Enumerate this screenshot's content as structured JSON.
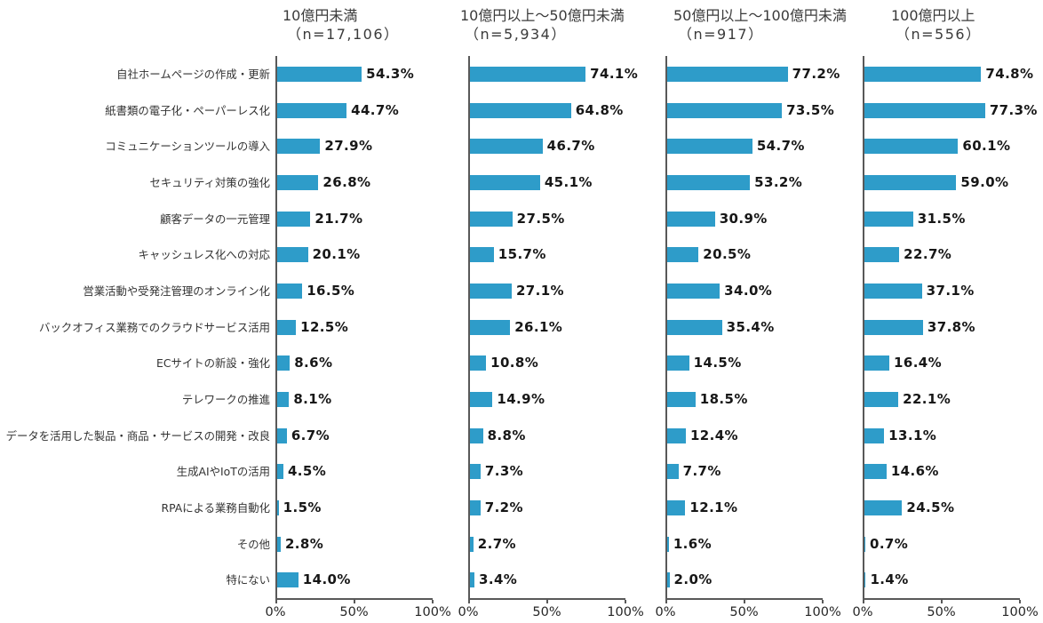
{
  "chart_data": {
    "type": "bar",
    "orientation": "horizontal",
    "value_unit": "%",
    "xlim": [
      0,
      100
    ],
    "x_tick_labels": [
      "0%",
      "50%",
      "100%"
    ],
    "bar_color": "#2E9CC9",
    "axis_color": "#595959",
    "categories": [
      "自社ホームページの作成・更新",
      "紙書類の電子化・ペーパーレス化",
      "コミュニケーションツールの導入",
      "セキュリティ対策の強化",
      "顧客データの一元管理",
      "キャッシュレス化への対応",
      "営業活動や受発注管理のオンライン化",
      "バックオフィス業務でのクラウドサービス活用",
      "ECサイトの新設・強化",
      "テレワークの推進",
      "データを活用した製品・商品・サービスの開発・改良",
      "生成AIやIoTの活用",
      "RPAによる業務自動化",
      "その他",
      "特にない"
    ],
    "panels": [
      {
        "title": "10億円未満",
        "n_label": "（n=17,106）",
        "values": [
          54.3,
          44.7,
          27.9,
          26.8,
          21.7,
          20.1,
          16.5,
          12.5,
          8.6,
          8.1,
          6.7,
          4.5,
          1.5,
          2.8,
          14.0
        ]
      },
      {
        "title": "10億円以上～50億円未満",
        "n_label": "（n=5,934）",
        "values": [
          74.1,
          64.8,
          46.7,
          45.1,
          27.5,
          15.7,
          27.1,
          26.1,
          10.8,
          14.9,
          8.8,
          7.3,
          7.2,
          2.7,
          3.4
        ]
      },
      {
        "title": "50億円以上～100億円未満",
        "n_label": "（n=917）",
        "values": [
          77.2,
          73.5,
          54.7,
          53.2,
          30.9,
          20.5,
          34.0,
          35.4,
          14.5,
          18.5,
          12.4,
          7.7,
          12.1,
          1.6,
          2.0
        ]
      },
      {
        "title": "100億円以上",
        "n_label": "（n=556）",
        "values": [
          74.8,
          77.3,
          60.1,
          59.0,
          31.5,
          22.7,
          37.1,
          37.8,
          16.4,
          22.1,
          13.1,
          14.6,
          24.5,
          0.7,
          1.4
        ]
      }
    ]
  }
}
